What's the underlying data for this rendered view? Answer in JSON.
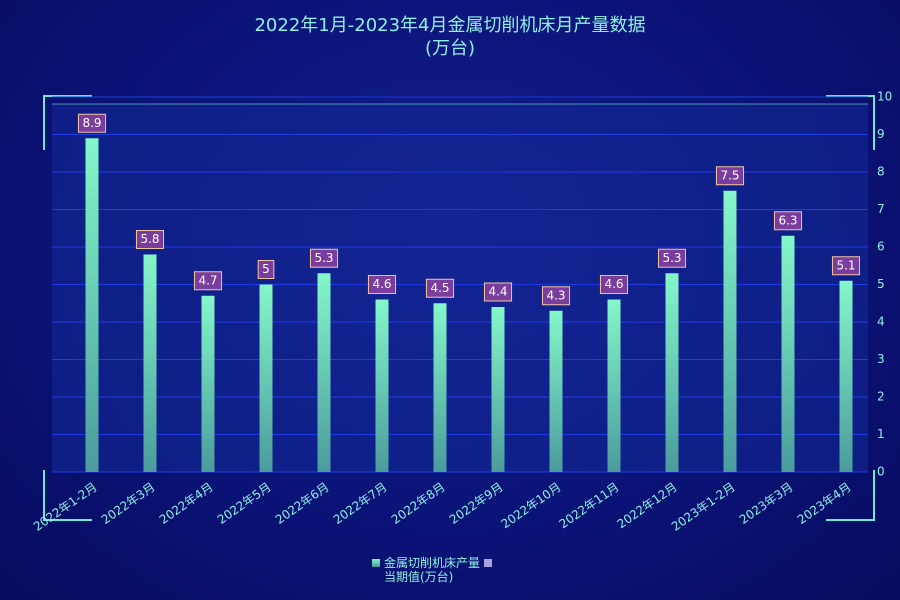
{
  "chart_data": {
    "type": "bar",
    "title": "2022年1月-2023年4月金属切削机床月产量数据\n(万台)",
    "categories": [
      "2022年1-2月",
      "2022年3月",
      "2022年4月",
      "2022年5月",
      "2022年6月",
      "2022年7月",
      "2022年8月",
      "2022年9月",
      "2022年10月",
      "2022年11月",
      "2022年12月",
      "2023年1-2月",
      "2023年3月",
      "2023年4月"
    ],
    "series": [
      {
        "name": "金属切削机床产量\n当期值(万台)",
        "color": "#7ff5c8",
        "values": [
          8.9,
          5.8,
          4.7,
          5,
          5.3,
          4.6,
          4.5,
          4.4,
          4.3,
          4.6,
          5.3,
          7.5,
          6.3,
          5.1
        ]
      }
    ],
    "ylim": [
      0,
      10
    ],
    "yticks": [
      0,
      1,
      2,
      3,
      4,
      5,
      6,
      7,
      8,
      9,
      10
    ],
    "grid": true
  }
}
